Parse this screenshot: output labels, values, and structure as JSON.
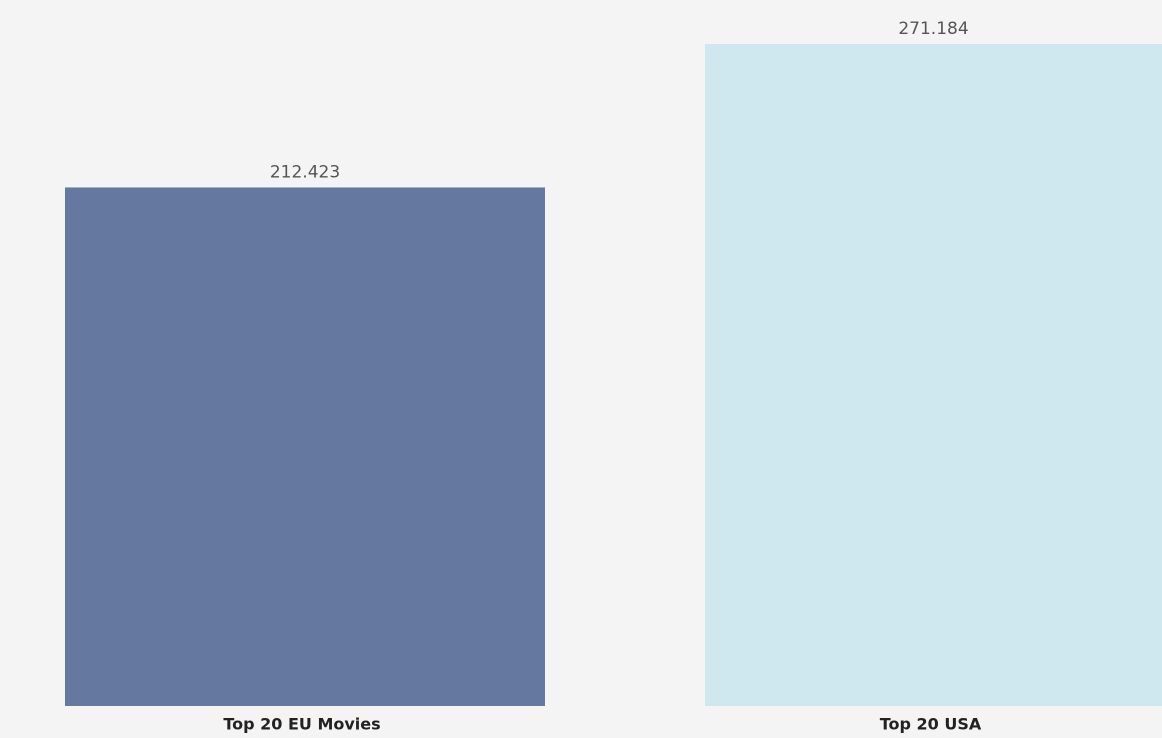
{
  "chart_data": {
    "type": "bar",
    "categories": [
      "Top 20 EU Movies",
      "Top 20 USA"
    ],
    "values": [
      212.423,
      271.184
    ],
    "colors": [
      "#6478a0",
      "#cfe8ef"
    ]
  }
}
